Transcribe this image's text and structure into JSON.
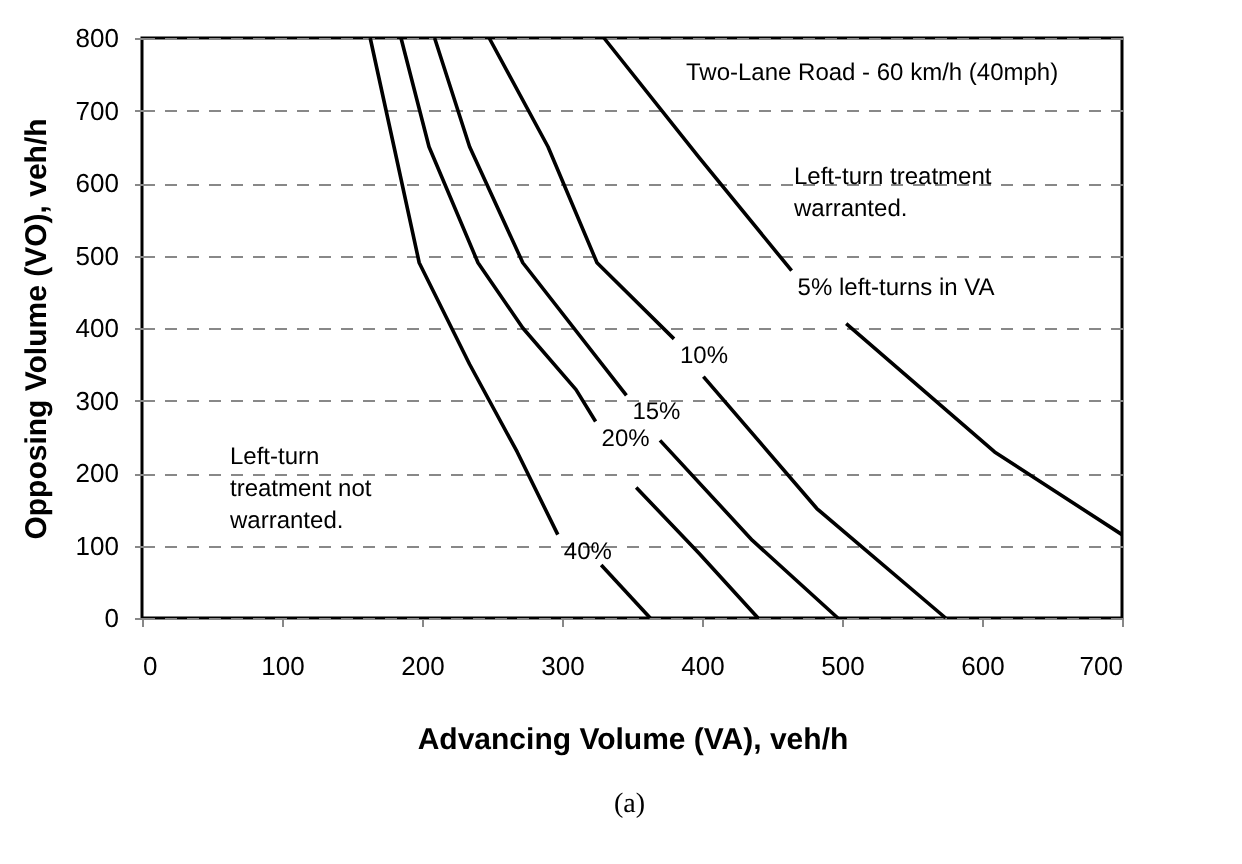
{
  "chart_data": {
    "type": "line",
    "xlabel": "Advancing Volume (VA), veh/h",
    "ylabel": "Opposing Volume (VO), veh/h",
    "xlim": [
      0,
      700
    ],
    "xticks": [
      0,
      100,
      200,
      300,
      400,
      500,
      600,
      700
    ],
    "ylim": [
      0,
      800
    ],
    "yticks": [
      0,
      100,
      200,
      300,
      400,
      500,
      600,
      700,
      800
    ],
    "grid": "y",
    "line_style": "solid",
    "marker": "none",
    "series": [
      {
        "color": "#000000",
        "x": [
          330,
          398,
          464,
          null,
          503,
          609,
          700
        ],
        "values": [
          800,
          635,
          479,
          null,
          406,
          229,
          115
        ]
      },
      {
        "color": "#000000",
        "x": [
          248,
          290,
          325,
          380,
          null,
          401,
          482,
          574
        ],
        "values": [
          800,
          650,
          490,
          385,
          null,
          333,
          151,
          0
        ]
      },
      {
        "color": "#000000",
        "x": [
          209,
          234,
          272,
          346,
          null,
          370,
          436,
          497
        ],
        "values": [
          800,
          650,
          490,
          307,
          null,
          245,
          107,
          0
        ]
      },
      {
        "color": "#000000",
        "x": [
          185,
          205,
          240,
          272,
          310,
          324,
          null,
          353,
          398,
          440
        ],
        "values": [
          800,
          650,
          490,
          400,
          315,
          271,
          null,
          180,
          89,
          0
        ]
      },
      {
        "color": "#000000",
        "x": [
          163,
          180,
          198,
          234,
          268,
          297,
          null,
          328,
          363
        ],
        "values": [
          800,
          650,
          490,
          350,
          229,
          115,
          null,
          73,
          0
        ]
      }
    ],
    "annotations": [
      "Two-Lane Road - 60 km/h (40mph)",
      "Left-turn treatment warranted.",
      "Left-turn treatment not warranted.",
      "(a)",
      {
        "text": "5% left-turns in VA",
        "x": 464,
        "y": 479
      },
      {
        "text": "10%",
        "x": 380,
        "y": 385
      },
      {
        "text": "15%",
        "x": 346,
        "y": 307
      },
      {
        "text": "20%",
        "x": 324,
        "y": 271
      },
      {
        "text": "40%",
        "x": 297,
        "y": 115
      }
    ]
  }
}
